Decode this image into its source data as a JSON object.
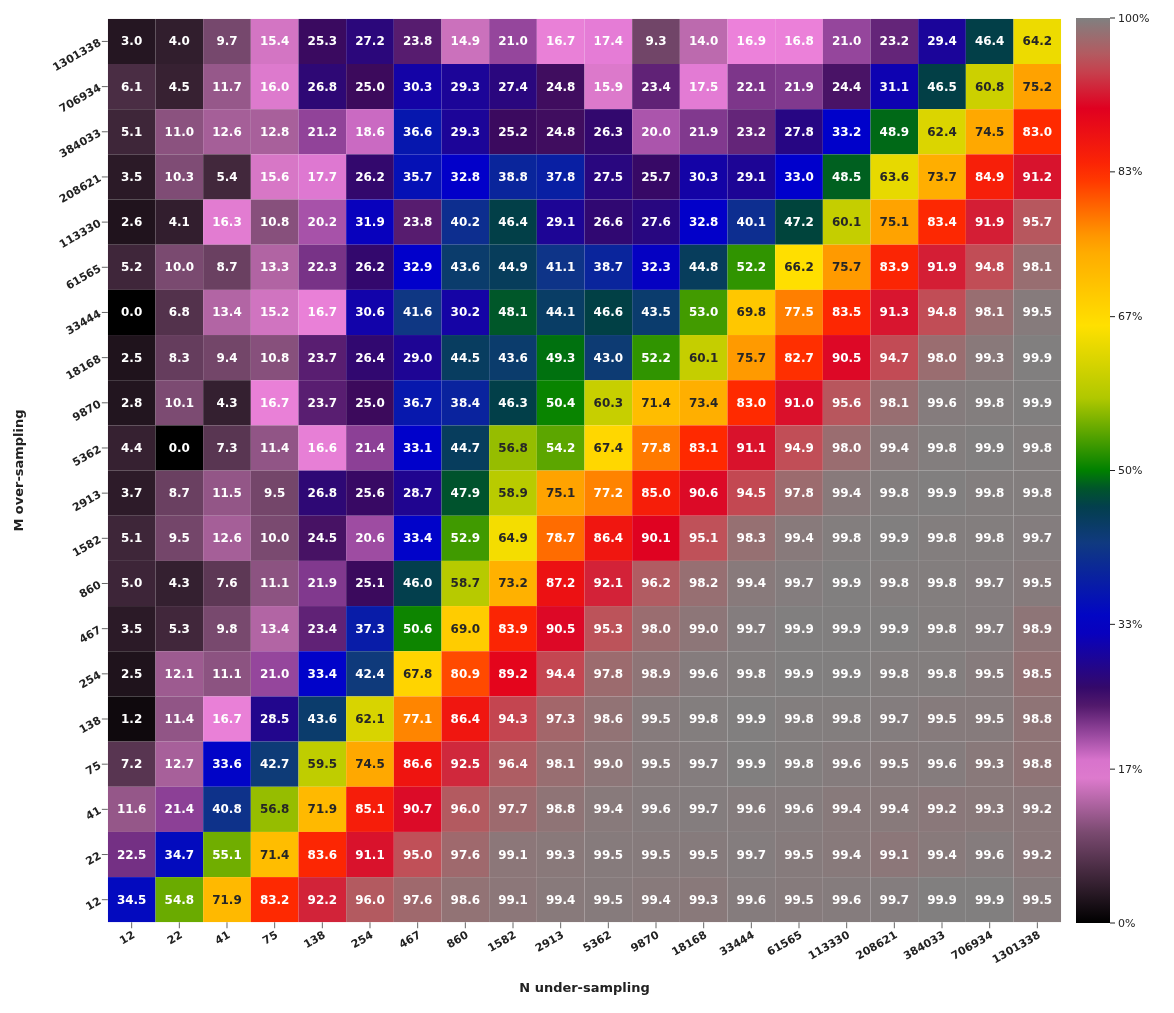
{
  "chart_data": {
    "type": "heatmap",
    "xlabel": "N under-sampling",
    "ylabel": "M over-sampling",
    "categories": [
      "12",
      "22",
      "41",
      "75",
      "138",
      "254",
      "467",
      "860",
      "1582",
      "2913",
      "5362",
      "9870",
      "18168",
      "33444",
      "61565",
      "113330",
      "208621",
      "384033",
      "706934",
      "1301338"
    ],
    "y_categories": [
      "1301338",
      "706934",
      "384033",
      "208621",
      "113330",
      "61565",
      "33444",
      "18168",
      "9870",
      "5362",
      "2913",
      "1582",
      "860",
      "467",
      "254",
      "138",
      "75",
      "41",
      "22",
      "12"
    ],
    "cells": [
      [
        3.0,
        4.0,
        9.7,
        15.4,
        25.3,
        27.2,
        23.8,
        14.9,
        21.0,
        16.7,
        17.4,
        9.3,
        14.0,
        16.9,
        16.8,
        21.0,
        23.2,
        29.4,
        46.4,
        64.2
      ],
      [
        6.1,
        4.5,
        11.7,
        16.0,
        26.8,
        25.0,
        30.3,
        29.3,
        27.4,
        24.8,
        15.9,
        23.4,
        17.5,
        22.1,
        21.9,
        24.4,
        31.1,
        46.5,
        60.8,
        75.2
      ],
      [
        5.1,
        11.0,
        12.6,
        12.8,
        21.2,
        18.6,
        36.6,
        29.3,
        25.2,
        24.8,
        26.3,
        20.0,
        21.9,
        23.2,
        27.8,
        33.2,
        48.9,
        62.4,
        74.5,
        83.0
      ],
      [
        3.5,
        10.3,
        5.4,
        15.6,
        17.7,
        26.2,
        35.7,
        32.8,
        38.8,
        37.8,
        27.5,
        25.7,
        30.3,
        29.1,
        33.0,
        48.5,
        63.6,
        73.7,
        84.9,
        91.2
      ],
      [
        2.6,
        4.1,
        16.3,
        10.8,
        20.2,
        31.9,
        23.8,
        40.2,
        46.4,
        29.1,
        26.6,
        27.6,
        32.8,
        40.1,
        47.2,
        60.1,
        75.1,
        83.4,
        91.9,
        95.7
      ],
      [
        5.2,
        10.0,
        8.7,
        13.3,
        22.3,
        26.2,
        32.9,
        43.6,
        44.9,
        41.1,
        38.7,
        32.3,
        44.8,
        52.2,
        66.2,
        75.7,
        83.9,
        91.9,
        94.8,
        98.1
      ],
      [
        0.0,
        6.8,
        13.4,
        15.2,
        16.7,
        30.6,
        41.6,
        30.2,
        48.1,
        44.1,
        46.6,
        43.5,
        53.0,
        69.8,
        77.5,
        83.5,
        91.3,
        94.8,
        98.1,
        99.5
      ],
      [
        2.5,
        8.3,
        9.4,
        10.8,
        23.7,
        26.4,
        29.0,
        44.5,
        43.6,
        49.3,
        43.0,
        52.2,
        60.1,
        75.7,
        82.7,
        90.5,
        94.7,
        98.0,
        99.3,
        99.9
      ],
      [
        2.8,
        10.1,
        4.3,
        16.7,
        23.7,
        25.0,
        36.7,
        38.4,
        46.3,
        50.4,
        60.3,
        71.4,
        73.4,
        83.0,
        91.0,
        95.6,
        98.1,
        99.6,
        99.8,
        99.9
      ],
      [
        4.4,
        0.0,
        7.3,
        11.4,
        16.6,
        21.4,
        33.1,
        44.7,
        56.8,
        54.2,
        67.4,
        77.8,
        83.1,
        91.1,
        94.9,
        98.0,
        99.4,
        99.8,
        99.9,
        99.8
      ],
      [
        3.7,
        8.7,
        11.5,
        9.5,
        26.8,
        25.6,
        28.7,
        47.9,
        58.9,
        75.1,
        77.2,
        85.0,
        90.6,
        94.5,
        97.8,
        99.4,
        99.8,
        99.9,
        99.8,
        99.8
      ],
      [
        5.1,
        9.5,
        12.6,
        10.0,
        24.5,
        20.6,
        33.4,
        52.9,
        64.9,
        78.7,
        86.4,
        90.1,
        95.1,
        98.3,
        99.4,
        99.8,
        99.9,
        99.8,
        99.8,
        99.7
      ],
      [
        5.0,
        4.3,
        7.6,
        11.1,
        21.9,
        25.1,
        46.0,
        58.7,
        73.2,
        87.2,
        92.1,
        96.2,
        98.2,
        99.4,
        99.7,
        99.9,
        99.8,
        99.8,
        99.7,
        99.5
      ],
      [
        3.5,
        5.3,
        9.8,
        13.4,
        23.4,
        37.3,
        50.6,
        69.0,
        83.9,
        90.5,
        95.3,
        98.0,
        99.0,
        99.7,
        99.9,
        99.9,
        99.9,
        99.8,
        99.7,
        98.9
      ],
      [
        2.5,
        12.1,
        11.1,
        21.0,
        33.4,
        42.4,
        67.8,
        80.9,
        89.2,
        94.4,
        97.8,
        98.9,
        99.6,
        99.8,
        99.9,
        99.9,
        99.8,
        99.8,
        99.5,
        98.5
      ],
      [
        1.2,
        11.4,
        16.7,
        28.5,
        43.6,
        62.1,
        77.1,
        86.4,
        94.3,
        97.3,
        98.6,
        99.5,
        99.8,
        99.9,
        99.8,
        99.8,
        99.7,
        99.5,
        99.5,
        98.8
      ],
      [
        7.2,
        12.7,
        33.6,
        42.7,
        59.5,
        74.5,
        86.6,
        92.5,
        96.4,
        98.1,
        99.0,
        99.5,
        99.7,
        99.9,
        99.8,
        99.6,
        99.5,
        99.6,
        99.3,
        98.8
      ],
      [
        11.6,
        21.4,
        40.8,
        56.8,
        71.9,
        85.1,
        90.7,
        96.0,
        97.7,
        98.8,
        99.4,
        99.6,
        99.7,
        99.6,
        99.6,
        99.4,
        99.4,
        99.2,
        99.3,
        99.2
      ],
      [
        22.5,
        34.7,
        55.1,
        71.4,
        83.6,
        91.1,
        95.0,
        97.6,
        99.1,
        99.3,
        99.5,
        99.5,
        99.5,
        99.7,
        99.5,
        99.4,
        99.1,
        99.4,
        99.6,
        99.2
      ],
      [
        34.5,
        54.8,
        71.9,
        83.2,
        92.2,
        96.0,
        97.6,
        98.6,
        99.1,
        99.4,
        99.5,
        99.4,
        99.3,
        99.6,
        99.5,
        99.6,
        99.7,
        99.9,
        99.9,
        99.5
      ]
    ],
    "cell_labels": [
      [
        "3.0",
        "4.0",
        "9.7",
        "15.4",
        "25.3",
        "27.2",
        "23.8",
        "14.9",
        "21.0",
        "16.7",
        "17.4",
        "9.3",
        "14.0",
        "16.9",
        "16.8",
        "21.0",
        "23.2",
        "29.4",
        "46.4",
        "64.2"
      ],
      [
        "6.1",
        "4.5",
        "11.7",
        "16.0",
        "26.8",
        "25.0",
        "30.3",
        "29.3",
        "27.4",
        "24.8",
        "15.9",
        "23.4",
        "17.5",
        "22.1",
        "21.9",
        "24.4",
        "31.1",
        "46.5",
        "60.8",
        "75.2"
      ],
      [
        "5.1",
        "11.0",
        "12.6",
        "12.8",
        "21.2",
        "18.6",
        "36.6",
        "29.3",
        "25.2",
        "24.8",
        "26.3",
        "20.0",
        "21.9",
        "23.2",
        "27.8",
        "33.2",
        "48.9",
        "62.4",
        "74.5",
        "83.0"
      ],
      [
        "3.5",
        "10.3",
        "5.4",
        "15.6",
        "17.7",
        "26.2",
        "35.7",
        "32.8",
        "38.8",
        "37.8",
        "27.5",
        "25.7",
        "30.3",
        "29.1",
        "33.0",
        "48.5",
        "63.6",
        "73.7",
        "84.9",
        "91.2"
      ],
      [
        "2.6",
        "4.1",
        "16.3",
        "10.8",
        "20.2",
        "31.9",
        "23.8",
        "40.2",
        "46.4",
        "29.1",
        "26.6",
        "27.6",
        "32.8",
        "40.1",
        "47.2",
        "60.1",
        "75.1",
        "83.4",
        "91.9",
        "95.7"
      ],
      [
        "5.2",
        "10.0",
        "8.7",
        "13.3",
        "22.3",
        "26.2",
        "32.9",
        "43.6",
        "44.9",
        "41.1",
        "38.7",
        "32.3",
        "44.8",
        "52.2",
        "66.2",
        "75.7",
        "83.9",
        "91.9",
        "94.8",
        "98.1"
      ],
      [
        "0.0",
        "6.8",
        "13.4",
        "15.2",
        "16.7",
        "30.6",
        "41.6",
        "30.2",
        "48.1",
        "44.1",
        "46.6",
        "43.5",
        "53.0",
        "69.8",
        "77.5",
        "83.5",
        "91.3",
        "94.8",
        "98.1",
        "99.5"
      ],
      [
        "2.5",
        "8.3",
        "9.4",
        "10.8",
        "23.7",
        "26.4",
        "29.0",
        "44.5",
        "43.6",
        "49.3",
        "43.0",
        "52.2",
        "60.1",
        "75.7",
        "82.7",
        "90.5",
        "94.7",
        "98.0",
        "99.3",
        "99.9"
      ],
      [
        "2.8",
        "10.1",
        "4.3",
        "16.7",
        "23.7",
        "25.0",
        "36.7",
        "38.4",
        "46.3",
        "50.4",
        "60.3",
        "71.4",
        "73.4",
        "83.0",
        "91.0",
        "95.6",
        "98.1",
        "99.6",
        "99.8",
        "99.9"
      ],
      [
        "4.4",
        "0.0",
        "7.3",
        "11.4",
        "16.6",
        "21.4",
        "33.1",
        "44.7",
        "56.8",
        "54.2",
        "67.4",
        "77.8",
        "83.1",
        "91.1",
        "94.9",
        "98.0",
        "99.4",
        "99.8",
        "99.9",
        "99.8"
      ],
      [
        "3.7",
        "8.7",
        "11.5",
        "9.5",
        "26.8",
        "25.6",
        "28.7",
        "47.9",
        "58.9",
        "75.1",
        "77.2",
        "85.0",
        "90.6",
        "94.5",
        "97.8",
        "99.4",
        "99.8",
        "99.9",
        "99.8",
        "99.8"
      ],
      [
        "5.1",
        "9.5",
        "12.6",
        "10.0",
        "24.5",
        "20.6",
        "33.4",
        "52.9",
        "64.9",
        "78.7",
        "86.4",
        "90.1",
        "95.1",
        "98.3",
        "99.4",
        "99.8",
        "99.9",
        "99.8",
        "99.8",
        "99.7"
      ],
      [
        "5.0",
        "4.3",
        "7.6",
        "11.1",
        "21.9",
        "25.1",
        "46.0",
        "58.7",
        "73.2",
        "87.2",
        "92.1",
        "96.2",
        "98.2",
        "99.4",
        "99.7",
        "99.9",
        "99.8",
        "99.8",
        "99.7",
        "99.5"
      ],
      [
        "3.5",
        "5.3",
        "9.8",
        "13.4",
        "23.4",
        "37.3",
        "50.6",
        "69.0",
        "83.9",
        "90.5",
        "95.3",
        "98.0",
        "99.0",
        "99.7",
        "99.9",
        "99.9",
        "99.9",
        "99.8",
        "99.7",
        "98.9"
      ],
      [
        "2.5",
        "12.1",
        "11.1",
        "21.0",
        "33.4",
        "42.4",
        "67.8",
        "80.9",
        "89.2",
        "94.4",
        "97.8",
        "98.9",
        "99.6",
        "99.8",
        "99.9",
        "99.9",
        "99.8",
        "99.8",
        "99.5",
        "98.5"
      ],
      [
        "1.2",
        "11.4",
        "16.7",
        "28.5",
        "43.6",
        "62.1",
        "77.1",
        "86.4",
        "94.3",
        "97.3",
        "98.6",
        "99.5",
        "99.8",
        "99.9",
        "99.8",
        "99.8",
        "99.7",
        "99.5",
        "99.5",
        "98.8"
      ],
      [
        "7.2",
        "12.7",
        "33.6",
        "42.7",
        "59.5",
        "74.5",
        "86.6",
        "92.5",
        "96.4",
        "98.1",
        "99.0",
        "99.5",
        "99.7",
        "99.9",
        "99.8",
        "99.6",
        "99.5",
        "99.6",
        "99.3",
        "98.8"
      ],
      [
        "11.6",
        "21.4",
        "40.8",
        "56.8",
        "71.9",
        "85.1",
        "90.7",
        "96.0",
        "97.7",
        "98.8",
        "99.4",
        "99.6",
        "99.7",
        "99.6",
        "99.6",
        "99.4",
        "99.4",
        "99.2",
        "99.3",
        "99.2"
      ],
      [
        "22.5",
        "34.7",
        "55.1",
        "71.4",
        "83.6",
        "91.1",
        "95.0",
        "97.6",
        "99.1",
        "99.3",
        "99.5",
        "99.5",
        "99.5",
        "99.7",
        "99.5",
        "99.4",
        "99.1",
        "99.4",
        "99.6",
        "99.2"
      ],
      [
        "34.5",
        "54.8",
        "71.9",
        "83.2",
        "92.2",
        "96.0",
        "97.6",
        "98.6",
        "99.1",
        "99.4",
        "99.5",
        "99.4",
        "99.3",
        "99.6",
        "99.5",
        "99.6",
        "99.7",
        "99.9",
        "99.9",
        "99.5"
      ]
    ],
    "clim": [
      0,
      100
    ],
    "cticks": [
      {
        "value": 0,
        "label": "0%"
      },
      {
        "value": 17,
        "label": "17%"
      },
      {
        "value": 33,
        "label": "33%"
      },
      {
        "value": 50,
        "label": "50%"
      },
      {
        "value": 67,
        "label": "67%"
      },
      {
        "value": 83,
        "label": "83%"
      },
      {
        "value": 100,
        "label": "100%"
      }
    ]
  }
}
